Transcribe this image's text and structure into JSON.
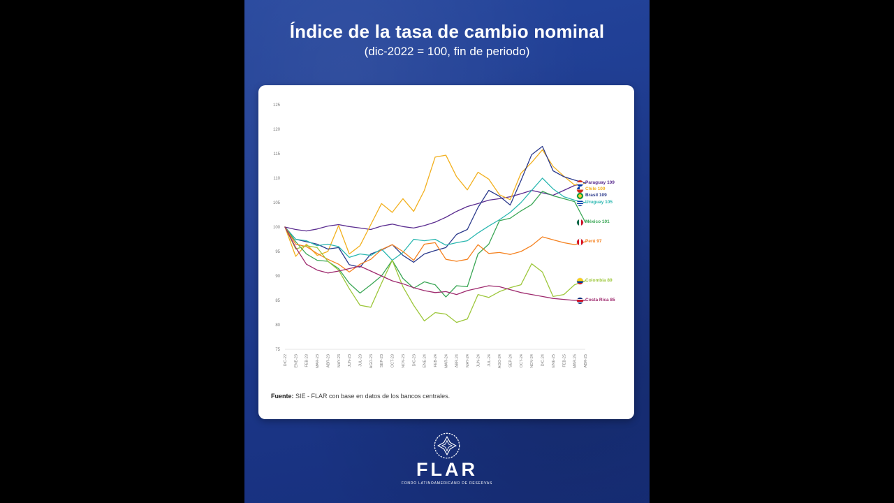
{
  "title": "Índice de la tasa de cambio nominal",
  "subtitle": "(dic-2022 = 100, fin de periodo)",
  "source": {
    "label": "Fuente:",
    "text": "SIE - FLAR con base en datos de los bancos centrales."
  },
  "logo": {
    "name": "FLAR",
    "tagline": "FONDO LATINOAMERICANO DE RESERVAS"
  },
  "colors": {
    "panel_background": "#1d3a8e",
    "card_background": "#ffffff",
    "title_text": "#ffffff"
  },
  "chart_data": {
    "type": "line",
    "title": "Índice de la tasa de cambio nominal",
    "subtitle": "(dic-2022 = 100, fin de periodo)",
    "grid": false,
    "legend_position": "right",
    "ylim": [
      75,
      125
    ],
    "ytick_step": 5,
    "x": [
      "DIC-22",
      "ENE-23",
      "FEB-23",
      "MAR-23",
      "ABR-23",
      "MAY-23",
      "JUN-23",
      "JUL-23",
      "AGO-23",
      "SEP-23",
      "OCT-23",
      "NOV-23",
      "DIC-23",
      "ENE-24",
      "FEB-24",
      "MAR-24",
      "ABR-24",
      "MAY-24",
      "JUN-24",
      "JUL-24",
      "AGO-24",
      "SEP-24",
      "OCT-24",
      "NOV-24",
      "DIC-24",
      "ENE-25",
      "FEB-25",
      "MAR-25",
      "ABR-25"
    ],
    "series": [
      {
        "name": "Paraguay",
        "label": "Paraguay 109",
        "final_value": 109,
        "flag": "paraguay",
        "color": "#5b2d90",
        "values": [
          100,
          99.5,
          99.2,
          99.6,
          100.2,
          100.5,
          100.1,
          99.8,
          99.5,
          100.2,
          100.6,
          100.1,
          99.8,
          100.3,
          101,
          102,
          103.2,
          104.2,
          104.8,
          105.5,
          105.8,
          106.2,
          106.8,
          107.5,
          107,
          106.5,
          107.5,
          108.5,
          109
        ]
      },
      {
        "name": "Chile",
        "label": "Chile 109",
        "final_value": 109,
        "flag": "chile",
        "color": "#f2b01e",
        "values": [
          100,
          94,
          96.5,
          94.2,
          95,
          100.3,
          94.5,
          96.2,
          100.5,
          104.8,
          103,
          105.8,
          103.2,
          107.5,
          114.3,
          114.7,
          110.3,
          107.6,
          111.2,
          109.8,
          106.6,
          105.6,
          111,
          113.2,
          115.8,
          112.4,
          110.4,
          108.6,
          109
        ]
      },
      {
        "name": "Brasil",
        "label": "Brasil 109",
        "final_value": 109,
        "flag": "brasil",
        "color": "#2b3a8c",
        "values": [
          100,
          97.5,
          97,
          96.5,
          95.5,
          95.8,
          92.3,
          91.8,
          94.5,
          95.3,
          96.4,
          94.2,
          92.8,
          94.5,
          95.2,
          95.8,
          98.5,
          99.5,
          104,
          107.5,
          106.3,
          104.5,
          109.5,
          114.8,
          116.5,
          111.5,
          110.3,
          109.6,
          109
        ]
      },
      {
        "name": "Uruguay",
        "label": "Uruguay 105",
        "final_value": 105,
        "flag": "uruguay",
        "color": "#2ab7b0",
        "values": [
          100,
          97.5,
          97.2,
          96.2,
          96.5,
          96,
          93.8,
          94.5,
          94.2,
          95.5,
          93.2,
          94.8,
          97.5,
          97.2,
          97.5,
          96.3,
          96.8,
          97.2,
          98.8,
          100.2,
          101.5,
          103,
          105,
          107.5,
          110,
          107.8,
          106.2,
          105.5,
          105
        ]
      },
      {
        "name": "México",
        "label": "México 101",
        "final_value": 101,
        "flag": "mexico",
        "color": "#3aa655",
        "values": [
          100,
          97,
          94.5,
          93.2,
          93,
          91.5,
          88.5,
          86.5,
          88.2,
          90,
          93.2,
          89.5,
          87.5,
          88.8,
          88.2,
          85.7,
          88,
          87.8,
          94.5,
          96.5,
          101.3,
          101.8,
          103.3,
          104.6,
          107.3,
          106.4,
          105.8,
          105.2,
          101
        ]
      },
      {
        "name": "Perú",
        "label": "Perú 97",
        "final_value": 97,
        "flag": "peru",
        "color": "#f58220",
        "values": [
          100,
          96.5,
          96,
          94.6,
          93.4,
          92.4,
          90.8,
          92.4,
          93.4,
          95.4,
          96.4,
          95,
          93.2,
          96.5,
          96.8,
          93.4,
          93,
          93.4,
          96.4,
          94.6,
          94.8,
          94.4,
          95,
          96.2,
          98,
          97.4,
          96.8,
          96.4,
          97
        ]
      },
      {
        "name": "Colombia",
        "label": "Colombia 89",
        "final_value": 89,
        "flag": "colombia",
        "color": "#9dc73b",
        "values": [
          100,
          95.5,
          96.2,
          95.8,
          93,
          91.2,
          87.4,
          84,
          83.6,
          88.5,
          93.2,
          87.8,
          84,
          80.8,
          82.5,
          82.2,
          80.5,
          81.2,
          86.2,
          85.6,
          86.8,
          87.6,
          88.2,
          92.5,
          90.8,
          85.8,
          86.2,
          88.2,
          89
        ]
      },
      {
        "name": "Costa Rica",
        "label": "Costa Rica 85",
        "final_value": 85,
        "flag": "costa-rica",
        "color": "#9e2a6e",
        "values": [
          100,
          95.8,
          92.4,
          91.2,
          90.6,
          91,
          91.5,
          92,
          91,
          90,
          89,
          88.4,
          87.6,
          87,
          86.6,
          86.8,
          86.2,
          87,
          87.5,
          88,
          87.8,
          87.2,
          86.6,
          86.2,
          85.8,
          85.4,
          85.2,
          85,
          85
        ]
      }
    ]
  }
}
